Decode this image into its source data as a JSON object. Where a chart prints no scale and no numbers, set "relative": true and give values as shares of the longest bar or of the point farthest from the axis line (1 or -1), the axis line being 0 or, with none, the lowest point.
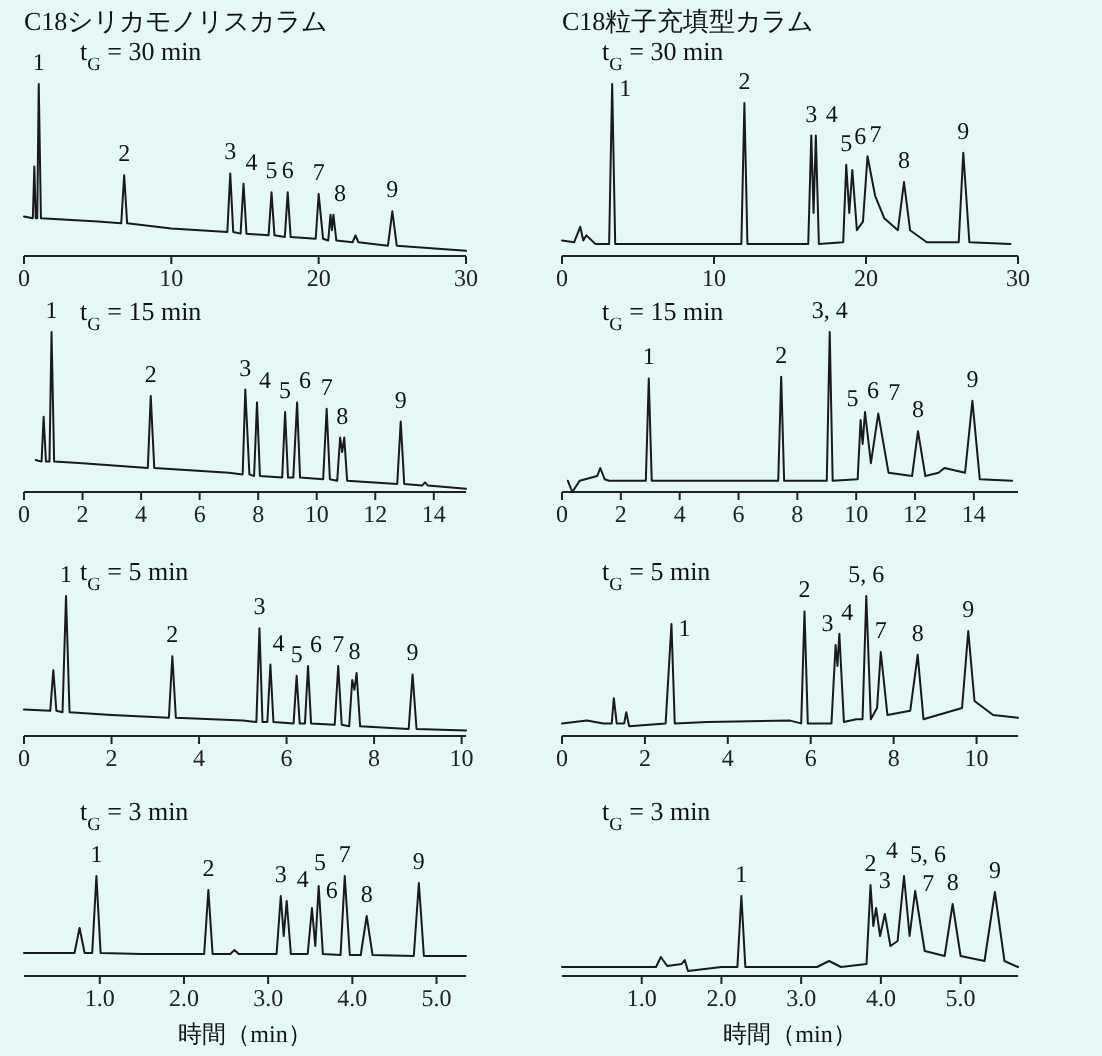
{
  "chart_data": [
    {
      "type": "line",
      "relative": true,
      "title": "C18シリカモノリスカラム",
      "xlim": [
        0,
        30
      ],
      "xticks": [
        0,
        10,
        20,
        30
      ],
      "x": [
        0,
        0.6,
        0.7,
        0.8,
        0.9,
        1.0,
        1.15,
        5,
        6.6,
        6.8,
        7.0,
        10,
        13.8,
        14.0,
        14.2,
        14.7,
        14.9,
        15.1,
        16.6,
        16.8,
        17.0,
        17.7,
        17.9,
        18.1,
        19.8,
        20.0,
        20.3,
        20.65,
        20.8,
        20.9,
        21.0,
        21.2,
        22.3,
        22.5,
        22.7,
        24.7,
        25.0,
        25.3,
        30
      ],
      "series": [
        {
          "color": "#1a1a1a",
          "values": [
            0.23,
            0.22,
            0.52,
            0.22,
            0.22,
            1,
            0.22,
            0.2,
            0.19,
            0.47,
            0.19,
            0.16,
            0.14,
            0.48,
            0.14,
            0.13,
            0.42,
            0.13,
            0.12,
            0.37,
            0.12,
            0.11,
            0.37,
            0.11,
            0.1,
            0.36,
            0.1,
            0.09,
            0.24,
            0.15,
            0.24,
            0.09,
            0.08,
            0.12,
            0.08,
            0.06,
            0.26,
            0.06,
            0.03
          ]
        }
      ],
      "annotations": [
        "t$_{G}$ = 30 min",
        {
          "text": "1",
          "x": 1.0,
          "y": 1
        },
        {
          "text": "2",
          "x": 6.8,
          "y": 0.47
        },
        {
          "text": "3",
          "x": 14.0,
          "y": 0.48
        },
        {
          "text": "4",
          "x": 14.9,
          "y": 0.42
        },
        {
          "text": "5",
          "x": 16.8,
          "y": 0.37
        },
        {
          "text": "6",
          "x": 17.9,
          "y": 0.37
        },
        {
          "text": "7",
          "x": 20.0,
          "y": 0.36
        },
        {
          "text": "8",
          "x": 20.9,
          "y": 0.24
        },
        {
          "text": "9",
          "x": 25.0,
          "y": 0.26
        }
      ]
    },
    {
      "type": "line",
      "relative": true,
      "title": "C18粒子充填型カラム",
      "xlim": [
        0,
        30
      ],
      "xticks": [
        0,
        10,
        20,
        30
      ],
      "x": [
        0,
        0.8,
        1.2,
        1.4,
        1.6,
        2.2,
        3.1,
        3.3,
        3.5,
        6,
        11.8,
        12.0,
        12.2,
        16.2,
        16.4,
        16.55,
        16.7,
        16.9,
        18.5,
        18.7,
        18.9,
        19.1,
        19.4,
        19.8,
        20.1,
        20.6,
        21.2,
        22.1,
        22.5,
        22.9,
        24,
        26.1,
        26.4,
        26.8,
        29.5
      ],
      "series": [
        {
          "color": "#1a1a1a",
          "values": [
            0.09,
            0.08,
            0.17,
            0.09,
            0.12,
            0.07,
            0.07,
            1,
            0.07,
            0.07,
            0.07,
            0.89,
            0.07,
            0.07,
            0.7,
            0.25,
            0.7,
            0.07,
            0.08,
            0.53,
            0.25,
            0.5,
            0.15,
            0.2,
            0.58,
            0.35,
            0.22,
            0.15,
            0.43,
            0.15,
            0.08,
            0.08,
            0.6,
            0.08,
            0.07
          ]
        }
      ],
      "annotations": [
        "t$_{G}$ = 30 min",
        {
          "text": "1",
          "x": 3.3,
          "y": 1
        },
        {
          "text": "2",
          "x": 12.0,
          "y": 0.89
        },
        {
          "text": "3",
          "x": 16.4,
          "y": 0.7
        },
        {
          "text": "4",
          "x": 16.7,
          "y": 0.7
        },
        {
          "text": "5",
          "x": 18.7,
          "y": 0.53
        },
        {
          "text": "6",
          "x": 19.1,
          "y": 0.5
        },
        {
          "text": "7",
          "x": 20.1,
          "y": 0.58
        },
        {
          "text": "8",
          "x": 22.5,
          "y": 0.43
        },
        {
          "text": "9",
          "x": 26.4,
          "y": 0.6
        }
      ]
    },
    {
      "type": "line",
      "relative": true,
      "xlim": [
        0,
        15.1
      ],
      "xticks": [
        0,
        2,
        4,
        6,
        8,
        10,
        12,
        14
      ],
      "x": [
        0.4,
        0.6,
        0.67,
        0.75,
        0.87,
        0.94,
        1.03,
        2,
        4.23,
        4.33,
        4.45,
        7,
        7.47,
        7.56,
        7.7,
        7.86,
        7.96,
        8.06,
        8.82,
        8.92,
        9.02,
        9.2,
        9.33,
        9.43,
        10.22,
        10.34,
        10.45,
        10.7,
        10.8,
        10.87,
        10.94,
        11.04,
        12.75,
        12.87,
        12.99,
        13.6,
        13.7,
        13.8,
        15.1
      ],
      "series": [
        {
          "color": "#1a1a1a",
          "values": [
            0.2,
            0.19,
            0.47,
            0.19,
            0.19,
            1,
            0.19,
            0.18,
            0.15,
            0.6,
            0.15,
            0.12,
            0.11,
            0.64,
            0.11,
            0.1,
            0.56,
            0.1,
            0.09,
            0.5,
            0.09,
            0.09,
            0.56,
            0.09,
            0.08,
            0.52,
            0.08,
            0.07,
            0.34,
            0.25,
            0.34,
            0.07,
            0.05,
            0.44,
            0.05,
            0.04,
            0.06,
            0.04,
            0.02
          ]
        }
      ],
      "annotations": [
        "t$_{G}$ = 15 min",
        {
          "text": "1",
          "x": 0.94,
          "y": 1
        },
        {
          "text": "2",
          "x": 4.33,
          "y": 0.6
        },
        {
          "text": "3",
          "x": 7.56,
          "y": 0.64
        },
        {
          "text": "4",
          "x": 7.96,
          "y": 0.56
        },
        {
          "text": "5",
          "x": 8.92,
          "y": 0.5
        },
        {
          "text": "6",
          "x": 9.33,
          "y": 0.56
        },
        {
          "text": "7",
          "x": 10.34,
          "y": 0.52
        },
        {
          "text": "8",
          "x": 10.87,
          "y": 0.34
        },
        {
          "text": "9",
          "x": 12.87,
          "y": 0.44
        }
      ]
    },
    {
      "type": "line",
      "relative": true,
      "xlim": [
        0,
        15.5
      ],
      "xticks": [
        0,
        2,
        4,
        6,
        8,
        10,
        12,
        14
      ],
      "x": [
        0.2,
        0.35,
        0.6,
        1.2,
        1.3,
        1.45,
        1.6,
        2.85,
        2.95,
        3.05,
        5,
        7.35,
        7.45,
        7.55,
        9.0,
        9.1,
        9.2,
        10.05,
        10.15,
        10.22,
        10.3,
        10.5,
        10.75,
        11.1,
        11.9,
        12.1,
        12.35,
        12.8,
        13.0,
        13.7,
        13.95,
        14.2,
        15.3
      ],
      "series": [
        {
          "color": "#1a1a1a",
          "values": [
            0.07,
            0,
            0.07,
            0.1,
            0.15,
            0.08,
            0.07,
            0.07,
            0.71,
            0.07,
            0.07,
            0.07,
            0.72,
            0.07,
            0.07,
            1,
            0.07,
            0.08,
            0.45,
            0.3,
            0.5,
            0.18,
            0.49,
            0.12,
            0.1,
            0.38,
            0.1,
            0.12,
            0.15,
            0.12,
            0.57,
            0.08,
            0.07
          ]
        }
      ],
      "annotations": [
        "t$_{G}$ = 15 min",
        {
          "text": "1",
          "x": 2.95,
          "y": 0.71
        },
        {
          "text": "2",
          "x": 7.45,
          "y": 0.72
        },
        {
          "text": "3, 4",
          "x": 9.1,
          "y": 1
        },
        {
          "text": "5",
          "x": 10.15,
          "y": 0.45
        },
        {
          "text": "6",
          "x": 10.3,
          "y": 0.5
        },
        {
          "text": "7",
          "x": 10.75,
          "y": 0.49
        },
        {
          "text": "8",
          "x": 12.1,
          "y": 0.38
        },
        {
          "text": "9",
          "x": 13.95,
          "y": 0.57
        }
      ]
    },
    {
      "type": "line",
      "relative": true,
      "xlim": [
        0,
        10.1
      ],
      "xticks": [
        0,
        2,
        4,
        6,
        8,
        10
      ],
      "x": [
        0,
        0.6,
        0.67,
        0.74,
        0.88,
        0.96,
        1.04,
        2,
        3.31,
        3.39,
        3.47,
        5,
        5.31,
        5.38,
        5.45,
        5.56,
        5.63,
        5.7,
        6.16,
        6.23,
        6.3,
        6.42,
        6.49,
        6.56,
        7.1,
        7.18,
        7.26,
        7.43,
        7.5,
        7.55,
        7.6,
        7.68,
        8.79,
        8.88,
        8.97,
        10.1
      ],
      "series": [
        {
          "color": "#1a1a1a",
          "values": [
            0.19,
            0.18,
            0.47,
            0.18,
            0.17,
            1,
            0.17,
            0.15,
            0.13,
            0.57,
            0.13,
            0.11,
            0.1,
            0.77,
            0.1,
            0.1,
            0.51,
            0.1,
            0.09,
            0.43,
            0.09,
            0.09,
            0.5,
            0.09,
            0.08,
            0.5,
            0.08,
            0.07,
            0.4,
            0.33,
            0.45,
            0.07,
            0.05,
            0.44,
            0.05,
            0.04
          ]
        }
      ],
      "annotations": [
        "t$_{G}$ = 5 min",
        {
          "text": "1",
          "x": 0.96,
          "y": 1
        },
        {
          "text": "2",
          "x": 3.39,
          "y": 0.57
        },
        {
          "text": "3",
          "x": 5.38,
          "y": 0.77
        },
        {
          "text": "4",
          "x": 5.63,
          "y": 0.51
        },
        {
          "text": "5",
          "x": 6.23,
          "y": 0.43
        },
        {
          "text": "6",
          "x": 6.49,
          "y": 0.5
        },
        {
          "text": "7",
          "x": 7.18,
          "y": 0.5
        },
        {
          "text": "8",
          "x": 7.55,
          "y": 0.45
        },
        {
          "text": "9",
          "x": 8.88,
          "y": 0.44
        }
      ]
    },
    {
      "type": "line",
      "relative": true,
      "xlim": [
        0,
        11
      ],
      "xticks": [
        0,
        2,
        4,
        6,
        8,
        10
      ],
      "x": [
        0,
        0.6,
        1.0,
        1.2,
        1.25,
        1.32,
        1.5,
        1.55,
        1.62,
        2.5,
        2.64,
        2.72,
        3.5,
        5.5,
        5.77,
        5.85,
        5.93,
        6.5,
        6.6,
        6.645,
        6.69,
        6.8,
        7.1,
        7.25,
        7.34,
        7.45,
        7.6,
        7.69,
        7.85,
        8.4,
        8.58,
        8.72,
        9.65,
        9.8,
        9.95,
        10.4,
        11
      ],
      "series": [
        {
          "color": "#1a1a1a",
          "values": [
            0.09,
            0.11,
            0.09,
            0.09,
            0.27,
            0.09,
            0.09,
            0.17,
            0.07,
            0.09,
            0.8,
            0.09,
            0.1,
            0.11,
            0.09,
            0.89,
            0.09,
            0.09,
            0.65,
            0.5,
            0.73,
            0.1,
            0.12,
            0.12,
            1,
            0.12,
            0.2,
            0.6,
            0.15,
            0.18,
            0.58,
            0.12,
            0.2,
            0.75,
            0.25,
            0.15,
            0.13
          ]
        }
      ],
      "annotations": [
        "t$_{G}$ = 5 min",
        {
          "text": "1",
          "x": 2.64,
          "y": 0.8
        },
        {
          "text": "2",
          "x": 5.85,
          "y": 0.89
        },
        {
          "text": "3",
          "x": 6.6,
          "y": 0.65
        },
        {
          "text": "4",
          "x": 6.69,
          "y": 0.73
        },
        {
          "text": "5, 6",
          "x": 7.34,
          "y": 1
        },
        {
          "text": "7",
          "x": 7.69,
          "y": 0.6
        },
        {
          "text": "8",
          "x": 8.58,
          "y": 0.58
        },
        {
          "text": "9",
          "x": 9.8,
          "y": 0.75
        }
      ]
    },
    {
      "type": "line",
      "relative": true,
      "xlabel": "時間（min）",
      "xlim": [
        0.1,
        5.35
      ],
      "xticks": [
        {
          "value": 1,
          "label": "1.0"
        },
        {
          "value": 2,
          "label": "2.0"
        },
        {
          "value": 3,
          "label": "3.0"
        },
        {
          "value": 4,
          "label": "4.0"
        },
        {
          "value": 5,
          "label": "5.0"
        }
      ],
      "x": [
        0.1,
        0.7,
        0.76,
        0.82,
        0.91,
        0.96,
        1.01,
        1.5,
        2.24,
        2.29,
        2.34,
        2.55,
        2.6,
        2.65,
        3.1,
        3.15,
        3.185,
        3.22,
        3.27,
        3.47,
        3.52,
        3.56,
        3.6,
        3.65,
        3.86,
        3.91,
        3.97,
        4.1,
        4.17,
        4.24,
        4.73,
        4.79,
        4.85,
        5.35
      ],
      "series": [
        {
          "color": "#1a1a1a",
          "values": [
            0.23,
            0.23,
            0.48,
            0.23,
            0.23,
            1,
            0.23,
            0.22,
            0.22,
            0.86,
            0.22,
            0.22,
            0.26,
            0.22,
            0.22,
            0.8,
            0.4,
            0.75,
            0.22,
            0.22,
            0.68,
            0.3,
            0.9,
            0.22,
            0.21,
            1,
            0.21,
            0.21,
            0.6,
            0.21,
            0.2,
            0.93,
            0.2,
            0.2
          ]
        }
      ],
      "annotations": [
        "t$_{G}$ = 3 min",
        {
          "text": "1",
          "x": 0.96,
          "y": 1
        },
        {
          "text": "2",
          "x": 2.29,
          "y": 0.86
        },
        {
          "text": "3",
          "x": 3.15,
          "y": 0.8
        },
        {
          "text": "4",
          "x": 3.22,
          "y": 0.75
        },
        {
          "text": "5",
          "x": 3.52,
          "y": 0.68
        },
        {
          "text": "6",
          "x": 3.6,
          "y": 0.9
        },
        {
          "text": "7",
          "x": 3.91,
          "y": 1
        },
        {
          "text": "8",
          "x": 4.17,
          "y": 0.6
        },
        {
          "text": "9",
          "x": 4.79,
          "y": 0.93
        }
      ]
    },
    {
      "type": "line",
      "relative": true,
      "xlabel": "時間（min）",
      "xlim": [
        0,
        5.72
      ],
      "xticks": [
        {
          "value": 1,
          "label": "1.0"
        },
        {
          "value": 2,
          "label": "2.0"
        },
        {
          "value": 3,
          "label": "3.0"
        },
        {
          "value": 4,
          "label": "4.0"
        },
        {
          "value": 5,
          "label": "5.0"
        }
      ],
      "x": [
        0,
        0.9,
        1.18,
        1.24,
        1.32,
        1.5,
        1.54,
        1.58,
        2.0,
        2.2,
        2.25,
        2.3,
        3.2,
        3.35,
        3.5,
        3.82,
        3.87,
        3.905,
        3.94,
        3.99,
        4.05,
        4.12,
        4.21,
        4.29,
        4.36,
        4.43,
        4.55,
        4.8,
        4.9,
        5.0,
        5.3,
        5.43,
        5.55,
        5.72
      ],
      "series": [
        {
          "color": "#1a1a1a",
          "values": [
            0.09,
            0.09,
            0.09,
            0.19,
            0.1,
            0.12,
            0.16,
            0.05,
            0.09,
            0.09,
            0.8,
            0.09,
            0.09,
            0.15,
            0.09,
            0.12,
            0.91,
            0.5,
            0.68,
            0.4,
            0.62,
            0.3,
            0.35,
            1,
            0.4,
            0.85,
            0.25,
            0.2,
            0.72,
            0.2,
            0.15,
            0.84,
            0.15,
            0.09
          ]
        }
      ],
      "annotations": [
        "t$_{G}$ = 3 min",
        {
          "text": "1",
          "x": 2.25,
          "y": 0.8
        },
        {
          "text": "2",
          "x": 3.87,
          "y": 0.91
        },
        {
          "text": "3",
          "x": 4.05,
          "y": 0.62
        },
        {
          "text": "4",
          "x": 3.94,
          "y": 0.68
        },
        {
          "text": "5, 6",
          "x": 4.29,
          "y": 1
        },
        {
          "text": "7",
          "x": 4.43,
          "y": 0.85
        },
        {
          "text": "8",
          "x": 4.9,
          "y": 0.72
        },
        {
          "text": "9",
          "x": 5.43,
          "y": 0.84
        }
      ]
    }
  ]
}
